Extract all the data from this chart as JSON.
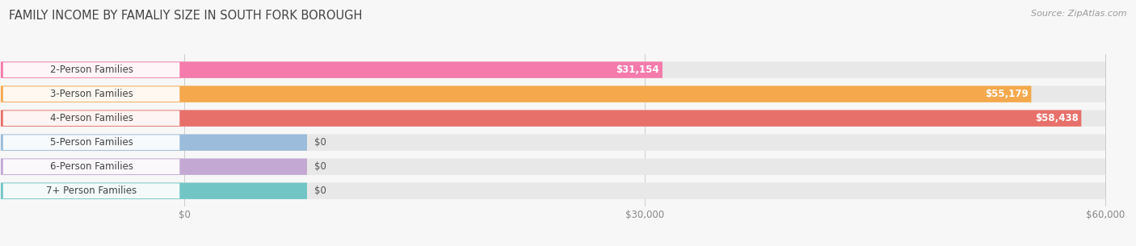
{
  "title": "Family Income by Famaliy Size in South Fork borough",
  "title_display": "FAMILY INCOME BY FAMALIY SIZE IN SOUTH FORK BOROUGH",
  "source": "Source: ZipAtlas.com",
  "categories": [
    "2-Person Families",
    "3-Person Families",
    "4-Person Families",
    "5-Person Families",
    "6-Person Families",
    "7+ Person Families"
  ],
  "values": [
    31154,
    55179,
    58438,
    0,
    0,
    0
  ],
  "bar_colors": [
    "#F47BAB",
    "#F5A84C",
    "#E8706A",
    "#9BBCDB",
    "#C3A8D4",
    "#72C5C5"
  ],
  "value_labels": [
    "$31,154",
    "$55,179",
    "$58,438",
    "$0",
    "$0",
    "$0"
  ],
  "xlim_max": 60000,
  "xticks": [
    0,
    30000,
    60000
  ],
  "xticklabels": [
    "$0",
    "$30,000",
    "$60,000"
  ],
  "background_color": "#f7f7f7",
  "bar_bg_color": "#e8e8e8",
  "title_fontsize": 10.5,
  "source_fontsize": 8,
  "label_fontsize": 8.5,
  "value_fontsize": 8.5,
  "zero_stub_value": 8000
}
